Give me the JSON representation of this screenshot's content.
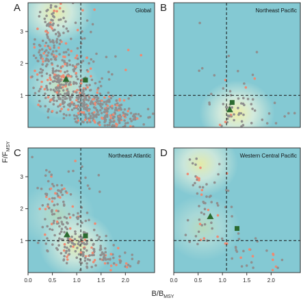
{
  "figure": {
    "y_axis_label": "F/F",
    "y_axis_label_sub": "MSY",
    "x_axis_label": "B/B",
    "x_axis_label_sub": "MSY"
  },
  "colors": {
    "panel_background": "#84c9d3",
    "density_high": "#f4f0a0",
    "density_mid": "#f0f6e0",
    "stock_point_gray": "#8f8f8f",
    "stock_point_salmon": "#ee8a72",
    "marker_green": "#2b6b30"
  },
  "chart_data": [
    {
      "type": "scatter",
      "letter": "A",
      "title": "Global",
      "xlim": [
        0,
        2.6
      ],
      "ylim": [
        0,
        3.9
      ],
      "x_ticks": [
        0,
        0.5,
        1,
        1.5,
        2
      ],
      "y_ticks": [
        1,
        2,
        3
      ],
      "reference_lines": {
        "x": 1,
        "y": 1
      },
      "summary_markers": [
        {
          "shape": "triangle",
          "x": 0.78,
          "y": 1.5
        },
        {
          "shape": "square",
          "x": 1.18,
          "y": 1.48
        }
      ],
      "density_peaks": [
        {
          "x": 0.55,
          "y": 3.6,
          "strength": 0.9
        },
        {
          "x": 0.7,
          "y": 1.3,
          "strength": 0.6
        }
      ],
      "clusters": [
        {
          "x": 0.5,
          "y": 3.4,
          "sx": 0.1,
          "sy": 0.35,
          "n": 40
        },
        {
          "x": 0.5,
          "y": 2.3,
          "sx": 0.18,
          "sy": 0.55,
          "n": 120
        },
        {
          "x": 0.75,
          "y": 1.4,
          "sx": 0.3,
          "sy": 0.45,
          "n": 170
        },
        {
          "x": 1.1,
          "y": 0.8,
          "sx": 0.35,
          "sy": 0.3,
          "n": 150
        },
        {
          "x": 1.5,
          "y": 0.5,
          "sx": 0.35,
          "sy": 0.25,
          "n": 110
        },
        {
          "x": 2.0,
          "y": 0.3,
          "sx": 0.3,
          "sy": 0.18,
          "n": 80
        },
        {
          "x": 1.0,
          "y": 2.6,
          "sx": 0.5,
          "sy": 0.8,
          "n": 40
        }
      ]
    },
    {
      "type": "scatter",
      "letter": "B",
      "title": "Northeast Pacific",
      "xlim": [
        0,
        2.6
      ],
      "ylim": [
        0,
        3.9
      ],
      "x_ticks": [
        0,
        0.5,
        1,
        1.5,
        2
      ],
      "y_ticks": [
        1,
        2,
        3
      ],
      "reference_lines": {
        "x": 1,
        "y": 1
      },
      "summary_markers": [
        {
          "shape": "triangle",
          "x": 1.15,
          "y": 0.55
        },
        {
          "shape": "square",
          "x": 1.2,
          "y": 0.78
        }
      ],
      "density_peaks": [
        {
          "x": 1.3,
          "y": 0.45,
          "strength": 0.95
        }
      ],
      "clusters": [
        {
          "x": 1.3,
          "y": 0.45,
          "sx": 0.3,
          "sy": 0.25,
          "n": 45
        },
        {
          "x": 1.0,
          "y": 1.6,
          "sx": 0.6,
          "sy": 0.8,
          "n": 15
        },
        {
          "x": 2.0,
          "y": 0.5,
          "sx": 0.3,
          "sy": 0.3,
          "n": 8
        }
      ]
    },
    {
      "type": "scatter",
      "letter": "C",
      "title": "Northeast Atlantic",
      "xlim": [
        0,
        2.6
      ],
      "ylim": [
        0,
        3.9
      ],
      "x_ticks": [
        0,
        0.5,
        1,
        1.5,
        2
      ],
      "y_ticks": [
        1,
        2,
        3
      ],
      "reference_lines": {
        "x": 1,
        "y": 1
      },
      "summary_markers": [
        {
          "shape": "triangle",
          "x": 0.8,
          "y": 1.18
        },
        {
          "shape": "square",
          "x": 1.18,
          "y": 1.15
        }
      ],
      "density_peaks": [
        {
          "x": 1.0,
          "y": 0.85,
          "strength": 0.85
        },
        {
          "x": 0.6,
          "y": 1.8,
          "strength": 0.4
        }
      ],
      "clusters": [
        {
          "x": 0.55,
          "y": 2.5,
          "sx": 0.15,
          "sy": 0.55,
          "n": 45
        },
        {
          "x": 0.75,
          "y": 1.5,
          "sx": 0.25,
          "sy": 0.45,
          "n": 70
        },
        {
          "x": 1.1,
          "y": 0.75,
          "sx": 0.3,
          "sy": 0.3,
          "n": 90
        },
        {
          "x": 1.6,
          "y": 0.4,
          "sx": 0.3,
          "sy": 0.2,
          "n": 60
        },
        {
          "x": 0.9,
          "y": 3.0,
          "sx": 0.4,
          "sy": 0.5,
          "n": 15
        }
      ]
    },
    {
      "type": "scatter",
      "letter": "D",
      "title": "Western Central Pacific",
      "xlim": [
        0,
        2.6
      ],
      "ylim": [
        0,
        3.9
      ],
      "x_ticks": [
        0,
        0.5,
        1,
        1.5,
        2
      ],
      "y_ticks": [
        1,
        2,
        3
      ],
      "reference_lines": {
        "x": 1,
        "y": 1
      },
      "summary_markers": [
        {
          "shape": "triangle",
          "x": 0.75,
          "y": 1.75
        },
        {
          "shape": "square",
          "x": 1.3,
          "y": 1.38
        }
      ],
      "density_peaks": [
        {
          "x": 0.55,
          "y": 3.4,
          "strength": 0.85
        },
        {
          "x": 0.6,
          "y": 1.4,
          "strength": 0.45
        }
      ],
      "clusters": [
        {
          "x": 0.5,
          "y": 3.0,
          "sx": 0.1,
          "sy": 0.45,
          "n": 20
        },
        {
          "x": 0.6,
          "y": 1.6,
          "sx": 0.15,
          "sy": 0.5,
          "n": 25
        },
        {
          "x": 0.9,
          "y": 2.3,
          "sx": 0.2,
          "sy": 0.5,
          "n": 12
        },
        {
          "x": 1.4,
          "y": 0.7,
          "sx": 0.3,
          "sy": 0.3,
          "n": 22
        },
        {
          "x": 1.9,
          "y": 0.4,
          "sx": 0.25,
          "sy": 0.2,
          "n": 10
        }
      ]
    }
  ]
}
